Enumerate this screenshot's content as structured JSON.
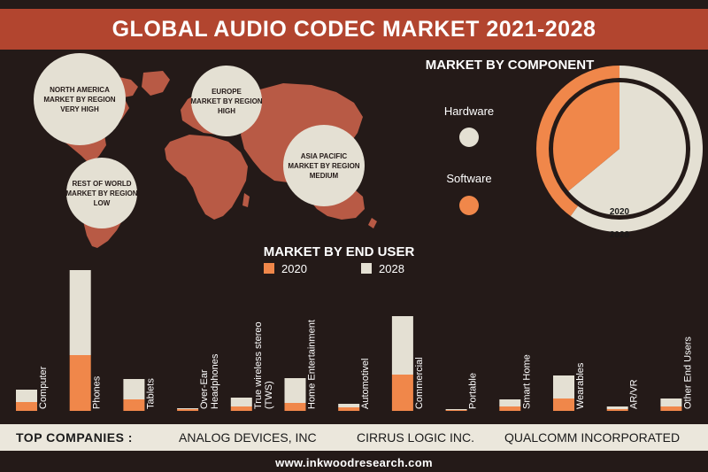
{
  "title": "GLOBAL AUDIO CODEC MARKET 2021-2028",
  "regions": [
    {
      "lines": [
        "NORTH AMERICA",
        "MARKET BY REGION",
        "VERY HIGH"
      ]
    },
    {
      "lines": [
        "EUROPE",
        "MARKET BY REGION",
        "HIGH"
      ]
    },
    {
      "lines": [
        "ASIA PACIFIC",
        "MARKET BY REGION",
        "MEDIUM"
      ]
    },
    {
      "lines": [
        "REST OF WORLD",
        "MARKET BY REGION",
        "LOW"
      ]
    }
  ],
  "colors": {
    "accent": "#b2452f",
    "c2020": "#f0874a",
    "c2028": "#e4e0d3",
    "background": "#241a18",
    "map": "#b85a45"
  },
  "chart_data": [
    {
      "type": "pie",
      "title": "MARKET BY COMPONENT",
      "legend": [
        "Hardware",
        "Software"
      ],
      "rings": [
        {
          "label": "2028",
          "slices": [
            {
              "name": "Hardware",
              "value": 60
            },
            {
              "name": "Software",
              "value": 40
            }
          ]
        },
        {
          "label": "2020",
          "slices": [
            {
              "name": "Hardware",
              "value": 64
            },
            {
              "name": "Software",
              "value": 36
            }
          ]
        }
      ]
    },
    {
      "type": "bar",
      "stacked": true,
      "title": "MARKET BY END USER",
      "categories": [
        "Computer",
        "Phones",
        "Tablets",
        "Over-Ear Headphones",
        "True wireless stereo (TWS)",
        "Home Entertainment",
        "Automotivel",
        "Commercial",
        "Portable",
        "Smart Home",
        "Wearables",
        "AR/VR",
        "Other End Users"
      ],
      "series": [
        {
          "name": "2020",
          "values": [
            10,
            63,
            13,
            2,
            5,
            9,
            4,
            41,
            1,
            5,
            14,
            2,
            5
          ]
        },
        {
          "name": "2028",
          "values": [
            14,
            96,
            23,
            1,
            10,
            28,
            4,
            66,
            1,
            8,
            26,
            3,
            9
          ]
        }
      ]
    }
  ],
  "companies": {
    "label": "TOP COMPANIES :",
    "items": [
      "ANALOG DEVICES, INC",
      "CIRRUS LOGIC INC.",
      "QUALCOMM INCORPORATED"
    ]
  },
  "footer": "www.inkwoodresearch.com"
}
